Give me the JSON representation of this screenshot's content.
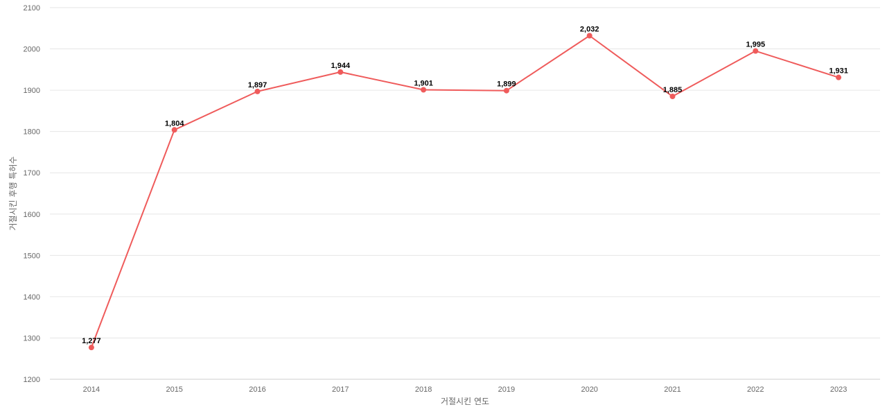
{
  "chart_data": {
    "type": "line",
    "title": "",
    "xlabel": "거절시킨 연도",
    "ylabel": "거절시킨 후행 특허수",
    "categories": [
      "2014",
      "2015",
      "2016",
      "2017",
      "2018",
      "2019",
      "2020",
      "2021",
      "2022",
      "2023"
    ],
    "series": [
      {
        "values": [
          1277,
          1804,
          1897,
          1944,
          1901,
          1899,
          2032,
          1885,
          1995,
          1931
        ],
        "data_labels": [
          "1,277",
          "1,804",
          "1,897",
          "1,944",
          "1,901",
          "1,899",
          "2,032",
          "1,885",
          "1,995",
          "1,931"
        ],
        "color": "#ef5b5b"
      }
    ],
    "ylim": [
      1200,
      2100
    ],
    "yticks": [
      "1200",
      "1300",
      "1400",
      "1500",
      "1600",
      "1700",
      "1800",
      "1900",
      "2000",
      "2100"
    ],
    "grid": true,
    "legend": "none"
  }
}
